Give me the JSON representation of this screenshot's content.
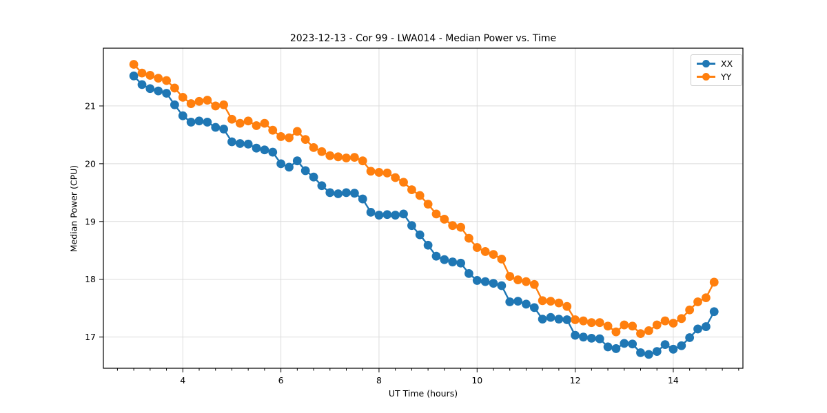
{
  "chart_data": {
    "type": "line",
    "title": "2023-12-13 - Cor 99 - LWA014 - Median Power vs. Time",
    "xlabel": "UT Time (hours)",
    "ylabel": "Median Power (CPU)",
    "xlim": [
      2.38,
      15.42
    ],
    "ylim": [
      16.46,
      22.0
    ],
    "x_ticks": [
      4,
      6,
      8,
      10,
      12,
      14
    ],
    "x_minor_divisions_per_unit": 3,
    "y_ticks": [
      17,
      18,
      19,
      20,
      21
    ],
    "grid": true,
    "legend_position": "upper right",
    "colors": {
      "background": "#ffffff",
      "grid": "#dcdcdc",
      "spine": "#000000",
      "tick_text": "#000000"
    },
    "x": [
      3.0,
      3.167,
      3.333,
      3.5,
      3.667,
      3.833,
      4.0,
      4.167,
      4.333,
      4.5,
      4.667,
      4.833,
      5.0,
      5.167,
      5.333,
      5.5,
      5.667,
      5.833,
      6.0,
      6.167,
      6.333,
      6.5,
      6.667,
      6.833,
      7.0,
      7.167,
      7.333,
      7.5,
      7.667,
      7.833,
      8.0,
      8.167,
      8.333,
      8.5,
      8.667,
      8.833,
      9.0,
      9.167,
      9.333,
      9.5,
      9.667,
      9.833,
      10.0,
      10.167,
      10.333,
      10.5,
      10.667,
      10.833,
      11.0,
      11.167,
      11.333,
      11.5,
      11.667,
      11.833,
      12.0,
      12.167,
      12.333,
      12.5,
      12.667,
      12.833,
      13.0,
      13.167,
      13.333,
      13.5,
      13.667,
      13.833,
      14.0,
      14.167,
      14.333,
      14.5,
      14.667,
      14.833
    ],
    "series": [
      {
        "name": "XX",
        "color": "#1f77b4",
        "values": [
          21.52,
          21.37,
          21.3,
          21.26,
          21.22,
          21.02,
          20.83,
          20.72,
          20.74,
          20.72,
          20.63,
          20.6,
          20.38,
          20.35,
          20.34,
          20.27,
          20.24,
          20.2,
          20.0,
          19.94,
          20.05,
          19.88,
          19.77,
          19.62,
          19.5,
          19.48,
          19.5,
          19.49,
          19.39,
          19.16,
          19.11,
          19.12,
          19.11,
          19.13,
          18.93,
          18.77,
          18.59,
          18.4,
          18.34,
          18.3,
          18.28,
          18.1,
          17.98,
          17.96,
          17.93,
          17.89,
          17.61,
          17.62,
          17.57,
          17.51,
          17.31,
          17.34,
          17.31,
          17.3,
          17.03,
          17.0,
          16.98,
          16.97,
          16.83,
          16.8,
          16.89,
          16.88,
          16.73,
          16.7,
          16.75,
          16.87,
          16.79,
          16.85,
          16.99,
          17.14,
          17.18,
          17.44
        ]
      },
      {
        "name": "YY",
        "color": "#ff7f0e",
        "values": [
          21.72,
          21.57,
          21.53,
          21.48,
          21.44,
          21.31,
          21.15,
          21.04,
          21.08,
          21.1,
          21.0,
          21.02,
          20.77,
          20.7,
          20.74,
          20.66,
          20.7,
          20.58,
          20.47,
          20.45,
          20.56,
          20.42,
          20.28,
          20.21,
          20.14,
          20.12,
          20.1,
          20.11,
          20.05,
          19.87,
          19.85,
          19.84,
          19.76,
          19.68,
          19.55,
          19.45,
          19.3,
          19.13,
          19.04,
          18.93,
          18.9,
          18.71,
          18.55,
          18.48,
          18.43,
          18.35,
          18.05,
          17.99,
          17.96,
          17.91,
          17.63,
          17.62,
          17.59,
          17.53,
          17.3,
          17.28,
          17.25,
          17.25,
          17.19,
          17.09,
          17.21,
          17.19,
          17.06,
          17.11,
          17.21,
          17.28,
          17.24,
          17.32,
          17.47,
          17.61,
          17.68,
          17.95
        ]
      }
    ]
  }
}
